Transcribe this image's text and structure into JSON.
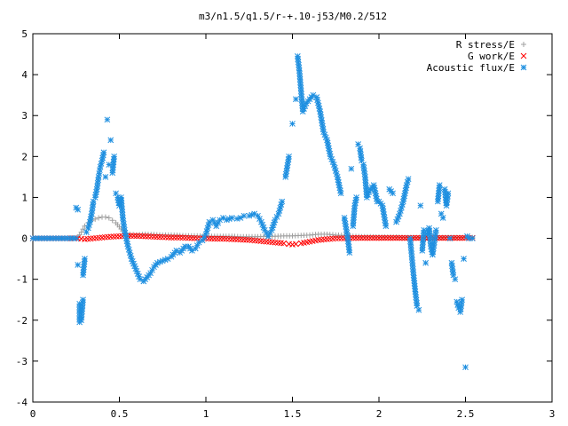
{
  "chart_data": {
    "type": "scatter",
    "title": "m3/n1.5/q1.5/r-+.10-j53/M0.2/512",
    "xlabel": "",
    "ylabel": "",
    "xlim": [
      0,
      3
    ],
    "ylim": [
      -4,
      5
    ],
    "xticks": [
      0,
      0.5,
      1,
      1.5,
      2,
      2.5,
      3
    ],
    "xtick_labels": [
      "0",
      "0.5",
      "1",
      "1.5",
      "2",
      "2.5",
      "3"
    ],
    "yticks": [
      -4,
      -3,
      -2,
      -1,
      0,
      1,
      2,
      3,
      4,
      5
    ],
    "ytick_labels": [
      "-4",
      "-3",
      "-2",
      "-1",
      "0",
      "1",
      "2",
      "3",
      "4",
      "5"
    ],
    "grid": false,
    "legend_position": "top-right",
    "series": [
      {
        "name": "R stress/E",
        "marker": "plus",
        "color": "#a0a0a0",
        "points": [
          [
            0.0,
            0
          ],
          [
            0.1,
            0
          ],
          [
            0.2,
            0
          ],
          [
            0.26,
            0.02
          ],
          [
            0.28,
            0.15
          ],
          [
            0.3,
            0.3
          ],
          [
            0.32,
            0.38
          ],
          [
            0.34,
            0.44
          ],
          [
            0.36,
            0.47
          ],
          [
            0.38,
            0.5
          ],
          [
            0.4,
            0.52
          ],
          [
            0.42,
            0.52
          ],
          [
            0.44,
            0.5
          ],
          [
            0.46,
            0.44
          ],
          [
            0.48,
            0.38
          ],
          [
            0.5,
            0.28
          ],
          [
            0.52,
            0.18
          ],
          [
            0.54,
            0.12
          ],
          [
            0.56,
            0.1
          ],
          [
            0.6,
            0.08
          ],
          [
            0.65,
            0.1
          ],
          [
            0.7,
            0.09
          ],
          [
            0.75,
            0.08
          ],
          [
            0.8,
            0.08
          ],
          [
            0.85,
            0.07
          ],
          [
            0.9,
            0.06
          ],
          [
            0.95,
            0.06
          ],
          [
            1.0,
            0.05
          ],
          [
            1.05,
            0.05
          ],
          [
            1.1,
            0.05
          ],
          [
            1.15,
            0.05
          ],
          [
            1.2,
            0.04
          ],
          [
            1.25,
            0.04
          ],
          [
            1.3,
            0.04
          ],
          [
            1.35,
            0.05
          ],
          [
            1.4,
            0.05
          ],
          [
            1.45,
            0.06
          ],
          [
            1.5,
            0.06
          ],
          [
            1.55,
            0.07
          ],
          [
            1.6,
            0.08
          ],
          [
            1.65,
            0.1
          ],
          [
            1.7,
            0.1
          ],
          [
            1.75,
            0.08
          ],
          [
            1.8,
            0.07
          ],
          [
            1.85,
            0.05
          ],
          [
            1.9,
            0.04
          ],
          [
            1.95,
            0.04
          ],
          [
            2.0,
            0.03
          ],
          [
            2.05,
            0.03
          ],
          [
            2.1,
            0.03
          ],
          [
            2.15,
            0.02
          ],
          [
            2.2,
            0.02
          ],
          [
            2.25,
            0.02
          ],
          [
            2.3,
            0.02
          ],
          [
            2.35,
            0.02
          ],
          [
            2.4,
            0.02
          ],
          [
            2.45,
            0.02
          ],
          [
            2.5,
            0.02
          ],
          [
            2.54,
            0.02
          ]
        ]
      },
      {
        "name": "G work/E",
        "marker": "cross",
        "color": "#ff0000",
        "points": [
          [
            0.0,
            0
          ],
          [
            0.1,
            0
          ],
          [
            0.2,
            0
          ],
          [
            0.26,
            0
          ],
          [
            0.3,
            -0.02
          ],
          [
            0.35,
            0.0
          ],
          [
            0.4,
            0.02
          ],
          [
            0.45,
            0.04
          ],
          [
            0.5,
            0.05
          ],
          [
            0.55,
            0.06
          ],
          [
            0.6,
            0.06
          ],
          [
            0.65,
            0.05
          ],
          [
            0.7,
            0.04
          ],
          [
            0.75,
            0.03
          ],
          [
            0.8,
            0.02
          ],
          [
            0.85,
            0.02
          ],
          [
            0.9,
            0.01
          ],
          [
            0.95,
            0.0
          ],
          [
            1.0,
            0.0
          ],
          [
            1.05,
            -0.01
          ],
          [
            1.1,
            -0.01
          ],
          [
            1.15,
            -0.02
          ],
          [
            1.2,
            -0.03
          ],
          [
            1.25,
            -0.04
          ],
          [
            1.3,
            -0.06
          ],
          [
            1.35,
            -0.08
          ],
          [
            1.4,
            -0.1
          ],
          [
            1.45,
            -0.12
          ],
          [
            1.48,
            -0.14
          ],
          [
            1.5,
            -0.15
          ],
          [
            1.52,
            -0.14
          ],
          [
            1.55,
            -0.12
          ],
          [
            1.6,
            -0.08
          ],
          [
            1.65,
            -0.04
          ],
          [
            1.7,
            -0.02
          ],
          [
            1.75,
            0.0
          ],
          [
            1.8,
            0.0
          ],
          [
            1.85,
            0.01
          ],
          [
            1.9,
            0.01
          ],
          [
            1.95,
            0.01
          ],
          [
            2.0,
            0.01
          ],
          [
            2.05,
            0.01
          ],
          [
            2.1,
            0.01
          ],
          [
            2.15,
            0.01
          ],
          [
            2.2,
            0.01
          ],
          [
            2.25,
            0.01
          ],
          [
            2.3,
            0.01
          ],
          [
            2.35,
            0.01
          ],
          [
            2.4,
            0.01
          ],
          [
            2.45,
            0.01
          ],
          [
            2.5,
            0.01
          ],
          [
            2.54,
            0.01
          ]
        ]
      },
      {
        "name": "Acoustic flux/E",
        "marker": "star",
        "color": "#1e8fe0",
        "points": [
          [
            0.0,
            0
          ],
          [
            0.05,
            0
          ],
          [
            0.1,
            0
          ],
          [
            0.15,
            0
          ],
          [
            0.2,
            0
          ],
          [
            0.25,
            0
          ],
          [
            0.25,
            0.75
          ],
          [
            0.26,
            0.7
          ],
          [
            0.26,
            -0.65
          ],
          [
            0.27,
            -1.6
          ],
          [
            0.27,
            -2.05
          ],
          [
            0.28,
            -2.0
          ],
          [
            0.29,
            -1.5
          ],
          [
            0.29,
            -0.9
          ],
          [
            0.3,
            -0.5
          ],
          [
            0.31,
            0.15
          ],
          [
            0.32,
            0.25
          ],
          [
            0.33,
            0.4
          ],
          [
            0.34,
            0.6
          ],
          [
            0.35,
            0.9
          ],
          [
            0.36,
            1.0
          ],
          [
            0.37,
            1.2
          ],
          [
            0.38,
            1.5
          ],
          [
            0.39,
            1.75
          ],
          [
            0.4,
            1.9
          ],
          [
            0.41,
            2.1
          ],
          [
            0.42,
            1.5
          ],
          [
            0.43,
            2.9
          ],
          [
            0.44,
            1.8
          ],
          [
            0.45,
            2.4
          ],
          [
            0.46,
            1.6
          ],
          [
            0.47,
            2.0
          ],
          [
            0.48,
            1.1
          ],
          [
            0.49,
            1.0
          ],
          [
            0.5,
            0.8
          ],
          [
            0.51,
            1.0
          ],
          [
            0.52,
            0.5
          ],
          [
            0.53,
            0.2
          ],
          [
            0.55,
            -0.2
          ],
          [
            0.57,
            -0.5
          ],
          [
            0.6,
            -0.8
          ],
          [
            0.62,
            -1.0
          ],
          [
            0.64,
            -1.05
          ],
          [
            0.66,
            -0.95
          ],
          [
            0.68,
            -0.85
          ],
          [
            0.7,
            -0.7
          ],
          [
            0.72,
            -0.6
          ],
          [
            0.75,
            -0.55
          ],
          [
            0.78,
            -0.5
          ],
          [
            0.8,
            -0.45
          ],
          [
            0.83,
            -0.3
          ],
          [
            0.85,
            -0.35
          ],
          [
            0.88,
            -0.2
          ],
          [
            0.9,
            -0.2
          ],
          [
            0.92,
            -0.3
          ],
          [
            0.94,
            -0.25
          ],
          [
            0.96,
            -0.1
          ],
          [
            0.98,
            -0.05
          ],
          [
            1.0,
            0.1
          ],
          [
            1.02,
            0.4
          ],
          [
            1.04,
            0.45
          ],
          [
            1.06,
            0.3
          ],
          [
            1.08,
            0.45
          ],
          [
            1.1,
            0.5
          ],
          [
            1.12,
            0.45
          ],
          [
            1.15,
            0.5
          ],
          [
            1.18,
            0.48
          ],
          [
            1.2,
            0.5
          ],
          [
            1.22,
            0.55
          ],
          [
            1.25,
            0.55
          ],
          [
            1.28,
            0.6
          ],
          [
            1.3,
            0.55
          ],
          [
            1.32,
            0.4
          ],
          [
            1.34,
            0.2
          ],
          [
            1.36,
            0.05
          ],
          [
            1.38,
            0.2
          ],
          [
            1.4,
            0.45
          ],
          [
            1.42,
            0.6
          ],
          [
            1.44,
            0.9
          ],
          [
            1.46,
            1.5
          ],
          [
            1.48,
            2.0
          ],
          [
            1.5,
            2.8
          ],
          [
            1.52,
            3.4
          ],
          [
            1.53,
            4.45
          ],
          [
            1.54,
            4.1
          ],
          [
            1.55,
            3.6
          ],
          [
            1.56,
            3.1
          ],
          [
            1.58,
            3.3
          ],
          [
            1.6,
            3.4
          ],
          [
            1.62,
            3.5
          ],
          [
            1.64,
            3.45
          ],
          [
            1.66,
            3.1
          ],
          [
            1.68,
            2.6
          ],
          [
            1.7,
            2.4
          ],
          [
            1.72,
            2.0
          ],
          [
            1.74,
            1.8
          ],
          [
            1.76,
            1.5
          ],
          [
            1.78,
            1.1
          ],
          [
            1.8,
            0.5
          ],
          [
            1.82,
            0.0
          ],
          [
            1.83,
            -0.35
          ],
          [
            1.84,
            1.7
          ],
          [
            1.85,
            0.3
          ],
          [
            1.86,
            0.8
          ],
          [
            1.87,
            1.0
          ],
          [
            1.88,
            2.3
          ],
          [
            1.89,
            2.2
          ],
          [
            1.9,
            1.9
          ],
          [
            1.91,
            1.8
          ],
          [
            1.92,
            1.5
          ],
          [
            1.93,
            1.0
          ],
          [
            1.95,
            1.2
          ],
          [
            1.97,
            1.3
          ],
          [
            1.99,
            0.9
          ],
          [
            2.0,
            0.9
          ],
          [
            2.02,
            0.8
          ],
          [
            2.04,
            0.3
          ],
          [
            2.06,
            1.2
          ],
          [
            2.08,
            1.1
          ],
          [
            2.1,
            0.4
          ],
          [
            2.12,
            0.6
          ],
          [
            2.14,
            0.9
          ],
          [
            2.16,
            1.3
          ],
          [
            2.17,
            1.45
          ],
          [
            2.18,
            0.0
          ],
          [
            2.19,
            -0.45
          ],
          [
            2.2,
            -0.9
          ],
          [
            2.21,
            -1.3
          ],
          [
            2.22,
            -1.65
          ],
          [
            2.23,
            -1.75
          ],
          [
            2.24,
            0.8
          ],
          [
            2.25,
            -0.3
          ],
          [
            2.26,
            0.2
          ],
          [
            2.27,
            -0.6
          ],
          [
            2.28,
            0.1
          ],
          [
            2.29,
            0.25
          ],
          [
            2.3,
            -0.2
          ],
          [
            2.31,
            -0.4
          ],
          [
            2.32,
            -0.1
          ],
          [
            2.33,
            0.2
          ],
          [
            2.34,
            0.9
          ],
          [
            2.35,
            1.3
          ],
          [
            2.36,
            0.6
          ],
          [
            2.37,
            0.5
          ],
          [
            2.38,
            1.2
          ],
          [
            2.39,
            0.8
          ],
          [
            2.4,
            1.1
          ],
          [
            2.41,
            0.0
          ],
          [
            2.42,
            -0.6
          ],
          [
            2.43,
            -0.9
          ],
          [
            2.44,
            -1.0
          ],
          [
            2.45,
            -1.55
          ],
          [
            2.46,
            -1.7
          ],
          [
            2.47,
            -1.8
          ],
          [
            2.48,
            -1.5
          ],
          [
            2.49,
            -0.5
          ],
          [
            2.5,
            -3.15
          ],
          [
            2.51,
            0.05
          ],
          [
            2.52,
            0.0
          ],
          [
            2.54,
            0
          ]
        ]
      }
    ]
  }
}
